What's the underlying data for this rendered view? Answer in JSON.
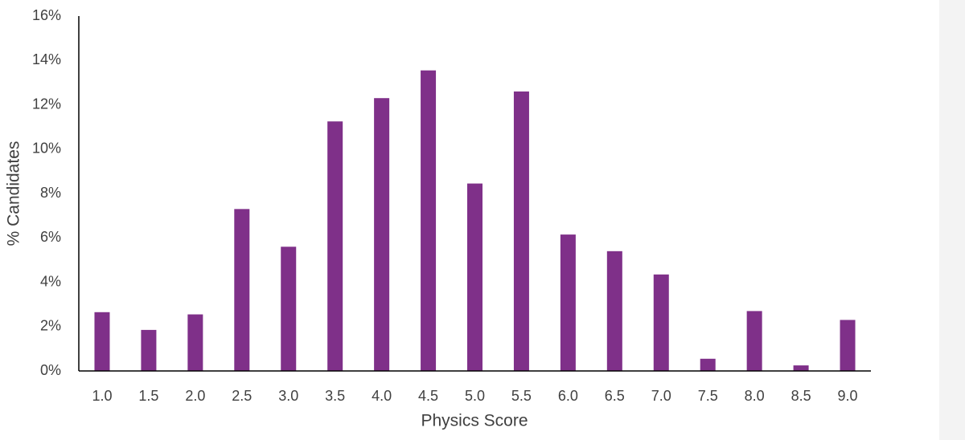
{
  "chart_data": {
    "type": "bar",
    "x_label": "Physics Score",
    "y_label": "% Candidates",
    "categories": [
      "1.0",
      "1.5",
      "2.0",
      "2.5",
      "3.0",
      "3.5",
      "4.0",
      "4.5",
      "5.0",
      "5.5",
      "6.0",
      "6.5",
      "7.0",
      "7.5",
      "8.0",
      "8.5",
      "9.0"
    ],
    "values": [
      2.65,
      1.85,
      2.55,
      7.3,
      5.6,
      11.25,
      12.3,
      13.55,
      8.45,
      12.6,
      6.15,
      5.4,
      4.35,
      0.55,
      2.7,
      0.25,
      2.3
    ],
    "color": "#7f3089",
    "ylim": [
      0,
      16
    ],
    "yticks": [
      {
        "value": 0,
        "label": "0%"
      },
      {
        "value": 2,
        "label": "2%"
      },
      {
        "value": 4,
        "label": "4%"
      },
      {
        "value": 6,
        "label": "6%"
      },
      {
        "value": 8,
        "label": "8%"
      },
      {
        "value": 10,
        "label": "10%"
      },
      {
        "value": 12,
        "label": "12%"
      },
      {
        "value": 14,
        "label": "14%"
      },
      {
        "value": 16,
        "label": "16%"
      }
    ],
    "grid": false
  }
}
